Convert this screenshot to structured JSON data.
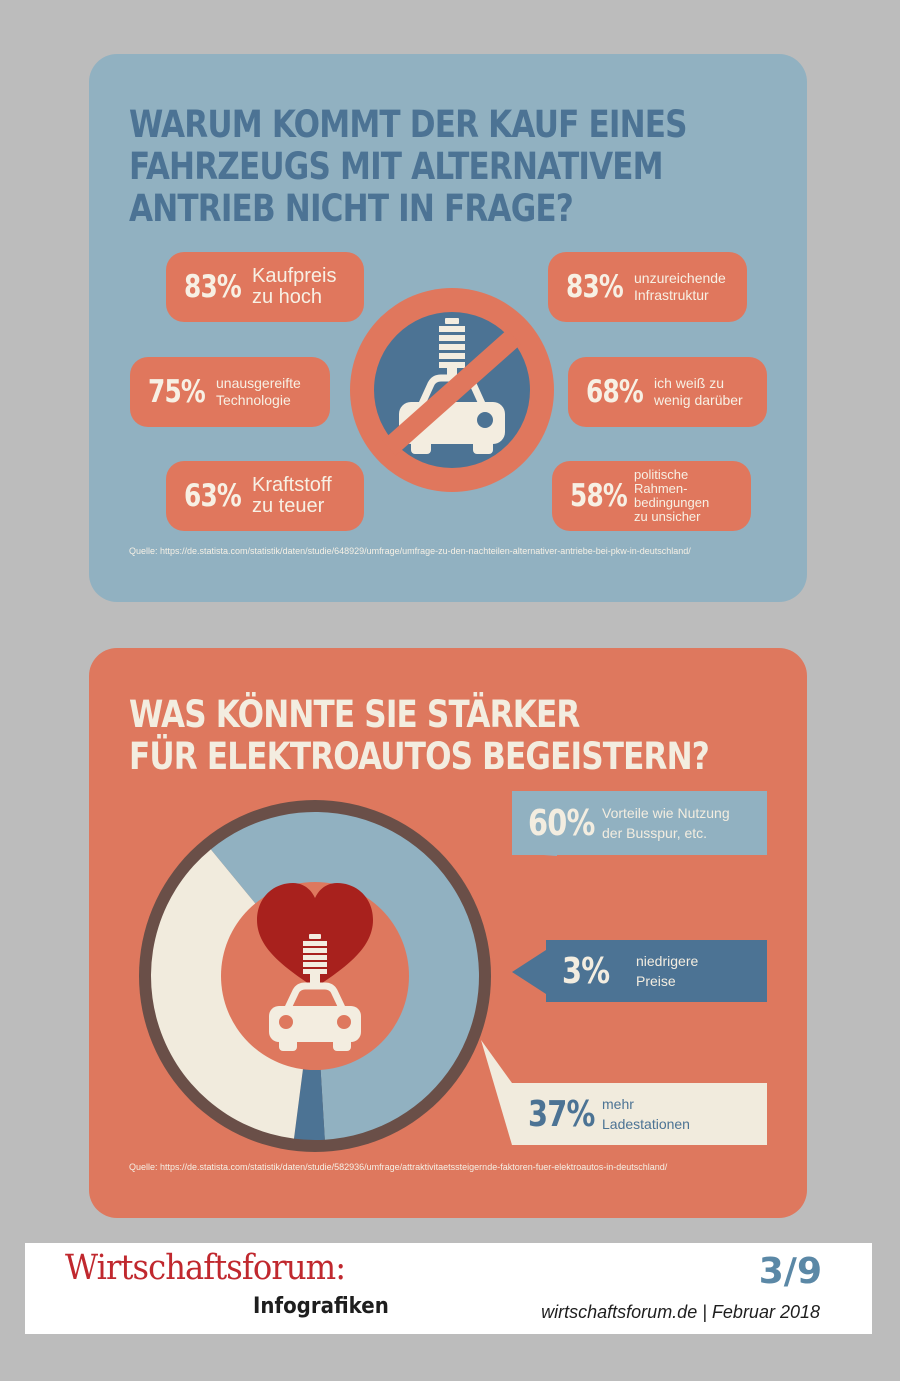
{
  "chart_data": [
    {
      "type": "table",
      "title": "Warum kommt der Kauf eines Fahrzeugs mit alternativem Antrieb nicht in Frage?",
      "title_lines": [
        "Warum kommt der Kauf eines",
        "Fahrzeugs mit alternativem",
        "Antrieb nicht in Frage?"
      ],
      "items": [
        {
          "value": "83%",
          "label_lines": [
            "Kaufpreis",
            "zu hoch"
          ]
        },
        {
          "value": "75%",
          "label_lines": [
            "unausgereifte",
            "Technologie"
          ]
        },
        {
          "value": "63%",
          "label_lines": [
            "Kraftstoff",
            "zu teuer"
          ]
        },
        {
          "value": "83%",
          "label_lines": [
            "unzureichende",
            "Infrastruktur"
          ]
        },
        {
          "value": "68%",
          "label_lines": [
            "ich weiß zu",
            "wenig darüber"
          ]
        },
        {
          "value": "58%",
          "label_lines": [
            "politische",
            "Rahmen-",
            "bedingungen",
            "zu unsicher"
          ]
        }
      ],
      "source": "Quelle: https://de.statista.com/statistik/daten/studie/648929/umfrage/umfrage-zu-den-nachteilen-alternativer-antriebe-bei-pkw-in-deutschland/"
    },
    {
      "type": "pie",
      "title": "Was könnte Sie stärker für Elektroautos begeistern?",
      "title_lines": [
        "Was könnte Sie stärker",
        "für Elektroautos begeistern?"
      ],
      "slices": [
        {
          "value": 60,
          "label": "60%",
          "text_lines": [
            "Vorteile wie Nutzung",
            "der Busspur, etc."
          ],
          "color": "#91b1c1"
        },
        {
          "value": 3,
          "label": "3%",
          "text_lines": [
            "niedrigere",
            "Preise"
          ],
          "color": "#4c7394"
        },
        {
          "value": 37,
          "label": "37%",
          "text_lines": [
            "mehr",
            "Ladestationen"
          ],
          "color": "#f1ebdd"
        }
      ],
      "source": "Quelle: https://de.statista.com/statistik/daten/studie/582936/umfrage/attraktivitaetssteigernde-faktoren-fuer-elektroautos-in-deutschland/"
    }
  ],
  "footer": {
    "brand": "Wirtschaftsforum:",
    "subtitle": "Infografiken",
    "page": "3/9",
    "site": "wirtschaftsforum.de",
    "date": "Februar 2018"
  },
  "colors": {
    "blue_light": "#91b1c1",
    "blue_dark": "#4c7394",
    "coral": "#de785e",
    "cream": "#f1ebdd",
    "heart": "#a8211d"
  },
  "icons": [
    "no-electric-car-icon",
    "battery-icon",
    "car-icon",
    "heart-icon"
  ]
}
